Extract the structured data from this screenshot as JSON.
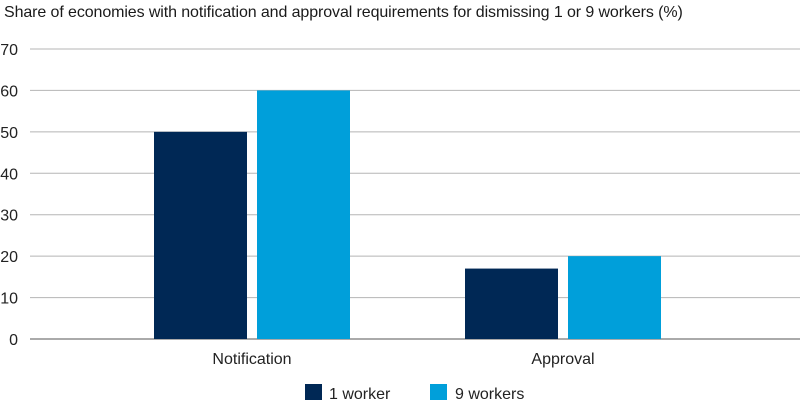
{
  "chart_data": {
    "type": "bar",
    "title": "Share of economies with notification and approval requirements for dismissing 1 or 9 workers (%)",
    "xlabel": "",
    "ylabel": "",
    "categories": [
      "Notification",
      "Approval"
    ],
    "series": [
      {
        "name": "1 worker",
        "values": [
          50,
          17
        ],
        "color": "#002855"
      },
      {
        "name": "9 workers",
        "values": [
          60,
          20
        ],
        "color": "#009FDA"
      }
    ],
    "ylim": [
      0,
      70
    ],
    "yticks": [
      0,
      10,
      20,
      30,
      40,
      50,
      60,
      70
    ],
    "grid": true,
    "legend_position": "bottom-center"
  }
}
